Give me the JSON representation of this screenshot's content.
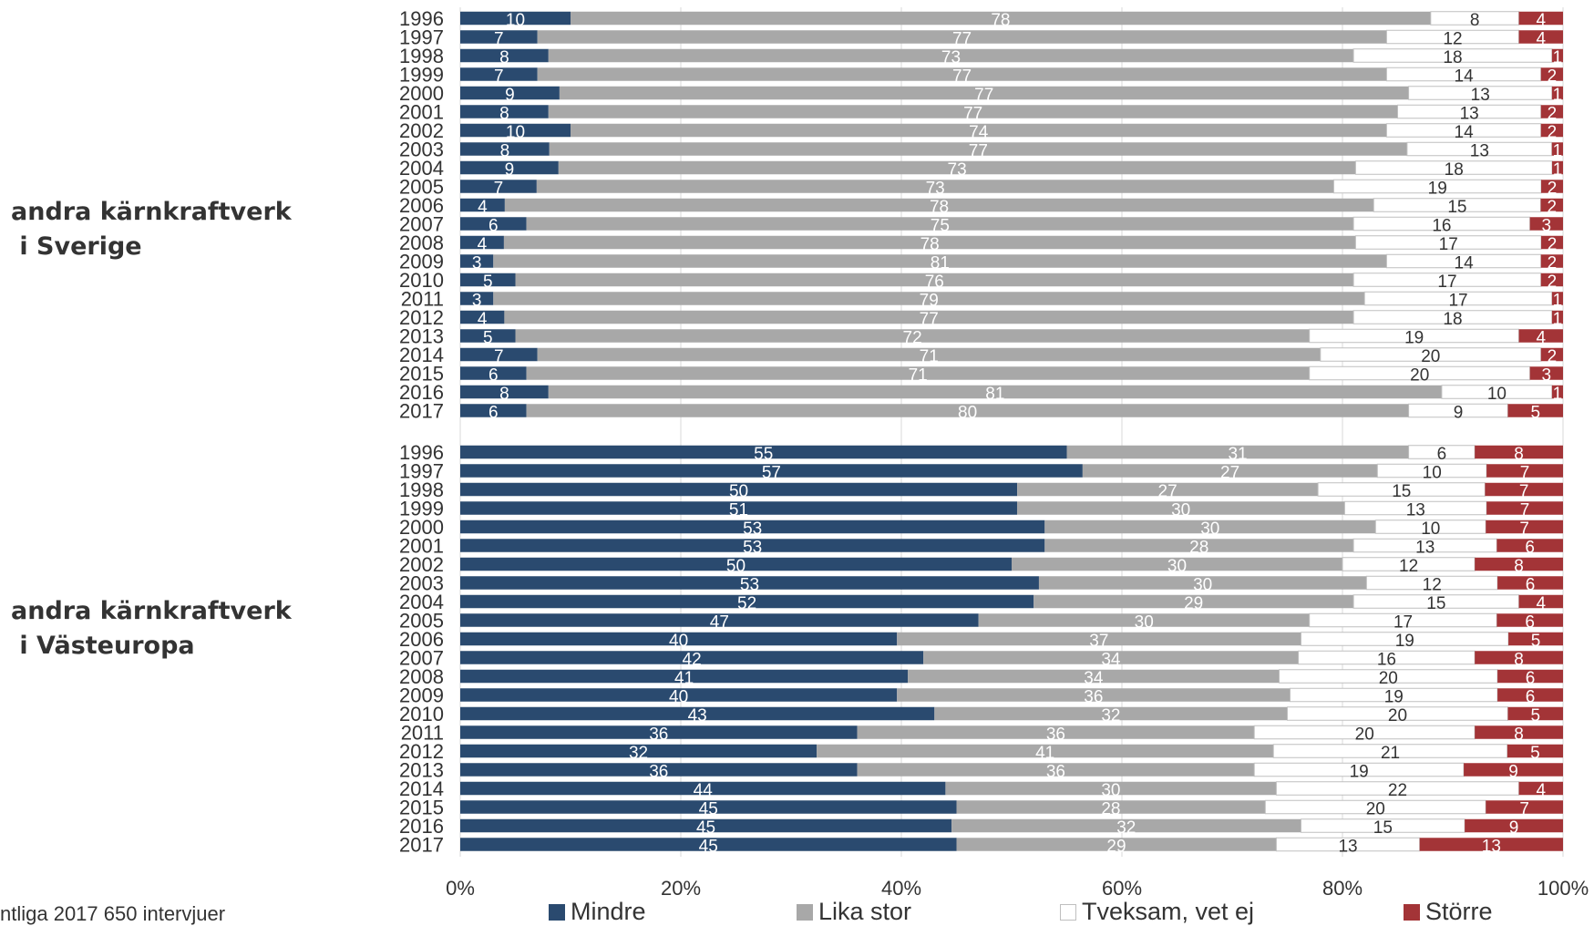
{
  "panels": [
    {
      "label": "andra kärnkraftverk\n i Sverige"
    },
    {
      "label": "andra kärnkraftverk\n i Västeuropa"
    }
  ],
  "footnote": "ntliga 2017 650 intervjuer",
  "chart_data": {
    "type": "bar",
    "orientation": "horizontal",
    "stacked": true,
    "normalized": true,
    "xlim": [
      0,
      100
    ],
    "x_ticks": [
      "0%",
      "20%",
      "40%",
      "60%",
      "80%",
      "100%"
    ],
    "grid": true,
    "legend_position": "bottom",
    "series_meta": [
      {
        "name": "Mindre",
        "color": "#2a4a6f",
        "label_color": "#ffffff"
      },
      {
        "name": "Lika stor",
        "color": "#a8a8a8",
        "label_color": "#ffffff"
      },
      {
        "name": "Tveksam, vet ej",
        "color": "#ffffff",
        "label_color": "#333333"
      },
      {
        "name": "Större",
        "color": "#a33437",
        "label_color": "#ffffff"
      }
    ],
    "panels": [
      {
        "categories": [
          "1996",
          "1997",
          "1998",
          "1999",
          "2000",
          "2001",
          "2002",
          "2003",
          "2004",
          "2005",
          "2006",
          "2007",
          "2008",
          "2009",
          "2010",
          "2011",
          "2012",
          "2013",
          "2014",
          "2015",
          "2016",
          "2017"
        ],
        "values": [
          [
            10,
            78,
            8,
            4
          ],
          [
            7,
            77,
            12,
            4
          ],
          [
            8,
            73,
            18,
            1
          ],
          [
            7,
            77,
            14,
            2
          ],
          [
            9,
            77,
            13,
            1
          ],
          [
            8,
            77,
            13,
            2
          ],
          [
            10,
            74,
            14,
            2
          ],
          [
            8,
            77,
            13,
            1
          ],
          [
            9,
            73,
            18,
            1
          ],
          [
            7,
            73,
            19,
            2
          ],
          [
            4,
            78,
            15,
            2
          ],
          [
            6,
            75,
            16,
            3
          ],
          [
            4,
            78,
            17,
            2
          ],
          [
            3,
            81,
            14,
            2
          ],
          [
            5,
            76,
            17,
            2
          ],
          [
            3,
            79,
            17,
            1
          ],
          [
            4,
            77,
            18,
            1
          ],
          [
            5,
            72,
            19,
            4
          ],
          [
            7,
            71,
            20,
            2
          ],
          [
            6,
            71,
            20,
            3
          ],
          [
            8,
            81,
            10,
            1
          ],
          [
            6,
            80,
            9,
            5
          ]
        ]
      },
      {
        "categories": [
          "1996",
          "1997",
          "1998",
          "1999",
          "2000",
          "2001",
          "2002",
          "2003",
          "2004",
          "2005",
          "2006",
          "2007",
          "2008",
          "2009",
          "2010",
          "2011",
          "2012",
          "2013",
          "2014",
          "2015",
          "2016",
          "2017"
        ],
        "values": [
          [
            55,
            31,
            6,
            8
          ],
          [
            57,
            27,
            10,
            7
          ],
          [
            50,
            27,
            15,
            7
          ],
          [
            51,
            30,
            13,
            7
          ],
          [
            53,
            30,
            10,
            7
          ],
          [
            53,
            28,
            13,
            6
          ],
          [
            50,
            30,
            12,
            8
          ],
          [
            53,
            30,
            12,
            6
          ],
          [
            52,
            29,
            15,
            4
          ],
          [
            47,
            30,
            17,
            6
          ],
          [
            40,
            37,
            19,
            5
          ],
          [
            42,
            34,
            16,
            8
          ],
          [
            41,
            34,
            20,
            6
          ],
          [
            40,
            36,
            19,
            6
          ],
          [
            43,
            32,
            20,
            5
          ],
          [
            36,
            36,
            20,
            8
          ],
          [
            32,
            41,
            21,
            5
          ],
          [
            36,
            36,
            19,
            9
          ],
          [
            44,
            30,
            22,
            4
          ],
          [
            45,
            28,
            20,
            7
          ],
          [
            45,
            32,
            15,
            9
          ],
          [
            45,
            29,
            13,
            13
          ]
        ]
      }
    ]
  }
}
